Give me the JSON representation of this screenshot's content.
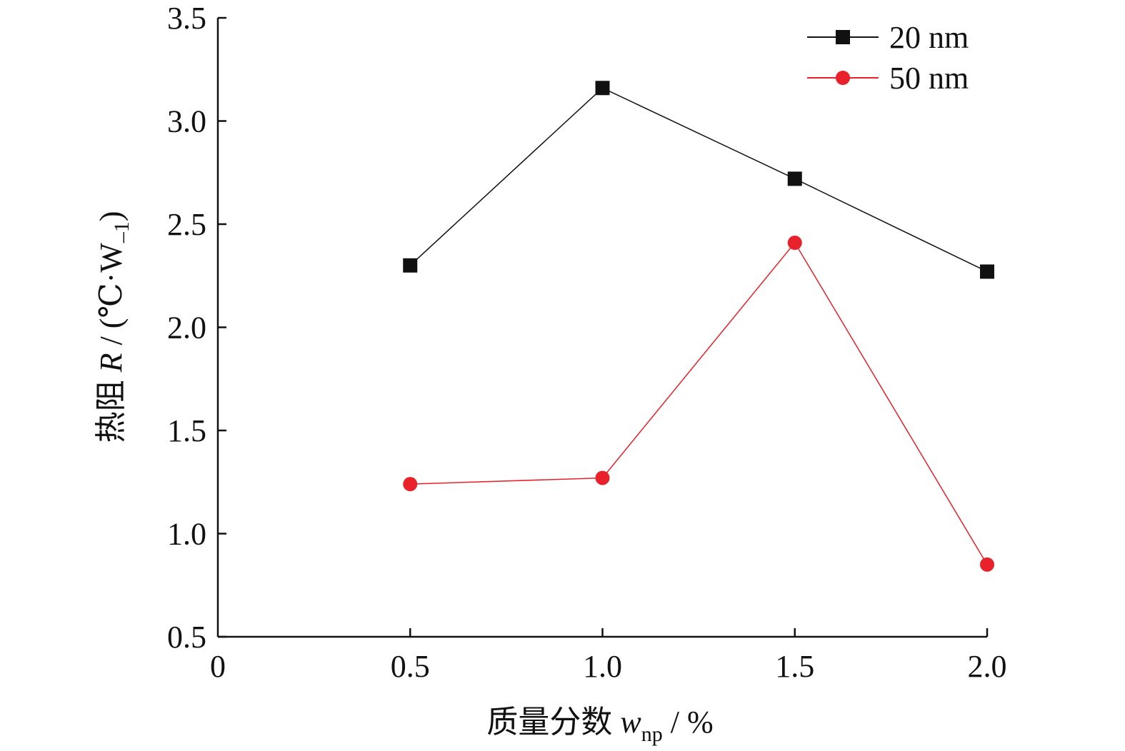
{
  "chart_data": {
    "type": "line",
    "xlabel": {
      "main": "质量分数 ",
      "var": "w",
      "sub": "np",
      "unit": " / %"
    },
    "ylabel": {
      "main": "热阻 ",
      "var": "R",
      "unit": " / (℃·W",
      "sup": "–1",
      "close": ")"
    },
    "xlim": [
      0,
      2.0
    ],
    "ylim": [
      0.5,
      3.5
    ],
    "xticks": [
      "0",
      "0.5",
      "1.0",
      "1.5",
      "2.0"
    ],
    "yticks": [
      "0.5",
      "1.0",
      "1.5",
      "2.0",
      "2.5",
      "3.0",
      "3.5"
    ],
    "legend_position": "top-right",
    "series": [
      {
        "name": "20 nm",
        "marker": "square",
        "color": "#111111",
        "x": [
          0.5,
          1.0,
          1.5,
          2.0
        ],
        "y": [
          2.3,
          3.16,
          2.72,
          2.27
        ]
      },
      {
        "name": "50 nm",
        "marker": "circle",
        "color": "#e8212b",
        "x": [
          0.5,
          1.0,
          1.5,
          2.0
        ],
        "y": [
          1.24,
          1.27,
          2.41,
          0.85
        ]
      }
    ]
  }
}
